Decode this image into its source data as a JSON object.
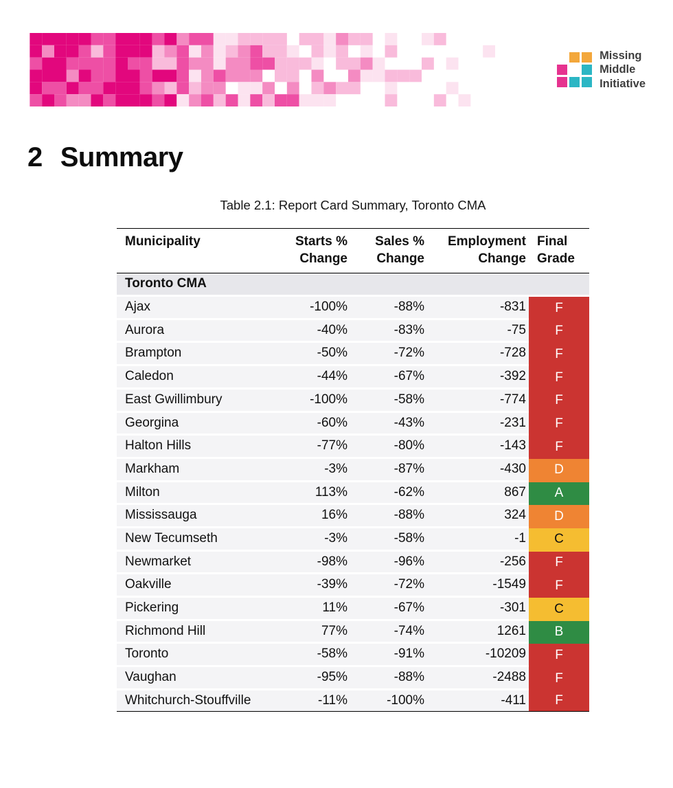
{
  "banner": {
    "shades": [
      "#E2077D",
      "#EE4FA5",
      "#F48BC2",
      "#F9BBDB",
      "#FCE3F0"
    ]
  },
  "logo": {
    "line1": "Missing",
    "line2": "Middle",
    "line3": "Initiative",
    "colors": {
      "orange": "#F3A73B",
      "pink": "#E6338F",
      "teal": "#2BB6C4"
    }
  },
  "heading": {
    "number": "2",
    "title": "Summary"
  },
  "table": {
    "caption": "Table 2.1: Report Card Summary, Toronto CMA",
    "columns": [
      {
        "l1": "Municipality",
        "l2": ""
      },
      {
        "l1": "Starts %",
        "l2": "Change"
      },
      {
        "l1": "Sales %",
        "l2": "Change"
      },
      {
        "l1": "Employment",
        "l2": "Change"
      },
      {
        "l1": "Final",
        "l2": "Grade"
      }
    ],
    "section": "Toronto CMA",
    "grade_colors": {
      "A": "#2f8c44",
      "B": "#2f8c44",
      "C": "#f5bd31",
      "D": "#ef8433",
      "F": "#cb3431"
    },
    "rows": [
      {
        "municipality": "Ajax",
        "starts": "-100%",
        "sales": "-88%",
        "employment": "-831",
        "grade": "F"
      },
      {
        "municipality": "Aurora",
        "starts": "-40%",
        "sales": "-83%",
        "employment": "-75",
        "grade": "F"
      },
      {
        "municipality": "Brampton",
        "starts": "-50%",
        "sales": "-72%",
        "employment": "-728",
        "grade": "F"
      },
      {
        "municipality": "Caledon",
        "starts": "-44%",
        "sales": "-67%",
        "employment": "-392",
        "grade": "F"
      },
      {
        "municipality": "East Gwillimbury",
        "starts": "-100%",
        "sales": "-58%",
        "employment": "-774",
        "grade": "F"
      },
      {
        "municipality": "Georgina",
        "starts": "-60%",
        "sales": "-43%",
        "employment": "-231",
        "grade": "F"
      },
      {
        "municipality": "Halton Hills",
        "starts": "-77%",
        "sales": "-80%",
        "employment": "-143",
        "grade": "F"
      },
      {
        "municipality": "Markham",
        "starts": "-3%",
        "sales": "-87%",
        "employment": "-430",
        "grade": "D"
      },
      {
        "municipality": "Milton",
        "starts": "113%",
        "sales": "-62%",
        "employment": "867",
        "grade": "A"
      },
      {
        "municipality": "Mississauga",
        "starts": "16%",
        "sales": "-88%",
        "employment": "324",
        "grade": "D"
      },
      {
        "municipality": "New Tecumseth",
        "starts": "-3%",
        "sales": "-58%",
        "employment": "-1",
        "grade": "C"
      },
      {
        "municipality": "Newmarket",
        "starts": "-98%",
        "sales": "-96%",
        "employment": "-256",
        "grade": "F"
      },
      {
        "municipality": "Oakville",
        "starts": "-39%",
        "sales": "-72%",
        "employment": "-1549",
        "grade": "F"
      },
      {
        "municipality": "Pickering",
        "starts": "11%",
        "sales": "-67%",
        "employment": "-301",
        "grade": "C"
      },
      {
        "municipality": "Richmond Hill",
        "starts": "77%",
        "sales": "-74%",
        "employment": "1261",
        "grade": "B"
      },
      {
        "municipality": "Toronto",
        "starts": "-58%",
        "sales": "-91%",
        "employment": "-10209",
        "grade": "F"
      },
      {
        "municipality": "Vaughan",
        "starts": "-95%",
        "sales": "-88%",
        "employment": "-2488",
        "grade": "F"
      },
      {
        "municipality": "Whitchurch-Stouffville",
        "starts": "-11%",
        "sales": "-100%",
        "employment": "-411",
        "grade": "F"
      }
    ]
  }
}
